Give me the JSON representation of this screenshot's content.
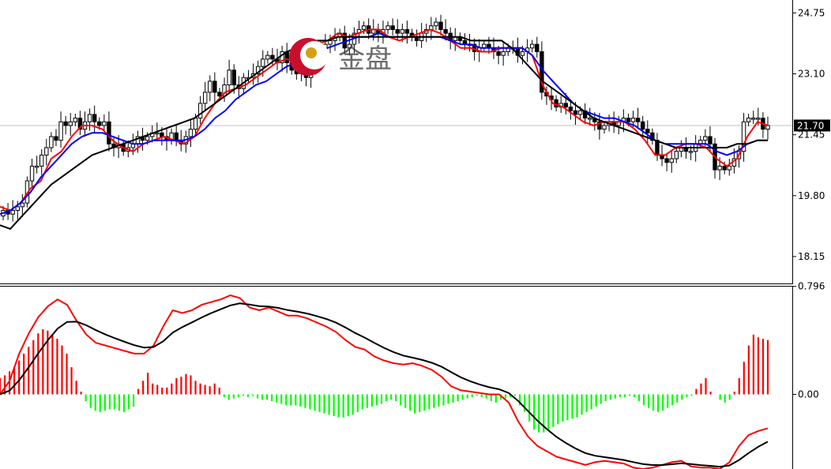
{
  "price_panel": {
    "y_ticks": [
      "24.75",
      "23.10",
      "21.45",
      "19.80",
      "18.15"
    ],
    "current_price": "21.70",
    "current_price_bg": "#000000"
  },
  "macd_panel": {
    "y_ticks": [
      "0.796",
      "0.00"
    ]
  },
  "watermark": {
    "text": "金盘"
  },
  "colors": {
    "ma_fast": "#ff0000",
    "ma_mid": "#0000ff",
    "ma_slow": "#000000",
    "hist_positive": "#ff0000",
    "hist_negative": "#00ff00",
    "macd_line": "#ff0000",
    "signal_line": "#000000",
    "current_price_line": "#c0c0c0"
  },
  "chart_data": [
    {
      "type": "candlestick",
      "title": "",
      "ylim": [
        17.4,
        25.1
      ],
      "y_ticks": [
        24.75,
        23.1,
        21.45,
        19.8,
        18.15
      ],
      "current_price": 21.7,
      "closes": [
        19.4,
        19.3,
        19.4,
        19.5,
        19.6,
        20.2,
        20.6,
        20.6,
        20.9,
        21.1,
        21.4,
        21.3,
        21.8,
        21.7,
        21.8,
        21.9,
        21.6,
        21.8,
        22.0,
        21.8,
        21.7,
        21.8,
        21.2,
        21.1,
        21.2,
        21.0,
        21.1,
        21.2,
        21.4,
        21.3,
        21.4,
        21.5,
        21.5,
        21.4,
        21.3,
        21.5,
        21.3,
        21.2,
        21.4,
        21.6,
        21.9,
        22.3,
        22.6,
        22.9,
        22.6,
        22.5,
        22.8,
        23.2,
        22.8,
        22.7,
        23.0,
        23.0,
        23.1,
        23.3,
        23.5,
        23.6,
        23.5,
        23.4,
        23.7,
        23.4,
        23.2,
        23.1,
        23.3,
        23.0,
        23.2,
        23.7,
        23.8,
        23.9,
        24.0,
        24.1,
        24.2,
        23.8,
        23.9,
        24.2,
        24.3,
        24.4,
        24.2,
        24.3,
        24.2,
        24.3,
        24.4,
        24.3,
        24.2,
        24.3,
        24.2,
        24.1,
        24.0,
        24.2,
        24.3,
        24.4,
        24.5,
        24.3,
        24.2,
        24.0,
        24.1,
        24.0,
        23.9,
        23.9,
        23.7,
        23.8,
        23.9,
        23.8,
        23.7,
        23.6,
        23.7,
        23.8,
        23.8,
        23.6,
        23.7,
        23.8,
        23.9,
        23.7,
        22.6,
        22.5,
        22.4,
        22.2,
        22.3,
        22.2,
        22.1,
        22.0,
        22.1,
        21.9,
        21.9,
        21.8,
        21.6,
        21.7,
        21.8,
        21.7,
        21.8,
        21.9,
        21.8,
        21.9,
        21.8,
        21.6,
        21.5,
        21.3,
        20.9,
        20.8,
        20.7,
        20.8,
        21.0,
        21.1,
        21.0,
        21.0,
        21.2,
        21.3,
        21.4,
        21.2,
        20.5,
        20.6,
        20.5,
        20.6,
        20.8,
        21.0,
        21.8,
        21.9,
        21.9,
        21.9,
        21.6,
        21.7
      ],
      "moving_averages": [
        {
          "values": [
            19.5,
            19.4,
            19.6,
            20.0,
            20.2,
            20.8,
            21.0,
            21.4,
            21.7,
            21.7,
            21.6,
            21.3,
            21.1,
            21.0,
            21.2,
            21.3,
            21.4,
            21.3,
            21.2,
            21.4,
            21.9,
            22.3,
            22.6,
            22.7,
            22.8,
            23.0,
            23.2,
            23.4,
            23.5,
            23.4,
            23.6,
            23.9,
            24.0,
            24.2,
            24.1,
            24.2,
            24.3,
            24.3,
            24.1,
            24.0,
            24.1,
            24.2,
            24.3,
            24.2,
            24.0,
            23.8,
            23.8,
            23.7,
            23.7,
            23.8,
            23.8,
            23.8,
            23.6,
            22.8,
            22.3,
            22.2,
            22.0,
            21.8,
            21.7,
            21.8,
            21.8,
            21.8,
            21.6,
            21.3,
            20.9,
            20.9,
            21.1,
            21.2,
            21.2,
            21.1,
            20.8,
            20.6,
            20.8,
            21.4,
            21.8,
            21.7
          ]
        },
        {
          "values": [
            19.3,
            19.4,
            19.6,
            19.9,
            20.3,
            20.6,
            20.9,
            21.2,
            21.4,
            21.5,
            21.5,
            21.4,
            21.3,
            21.2,
            21.2,
            21.3,
            21.3,
            21.3,
            21.3,
            21.4,
            21.6,
            21.9,
            22.1,
            22.4,
            22.6,
            22.8,
            22.9,
            23.1,
            23.3,
            23.4,
            23.5,
            23.6,
            23.8,
            23.9,
            24.0,
            24.1,
            24.1,
            24.2,
            24.1,
            24.1,
            24.1,
            24.1,
            24.1,
            24.1,
            24.0,
            23.9,
            23.9,
            23.8,
            23.8,
            23.8,
            23.8,
            23.8,
            23.6,
            23.2,
            22.9,
            22.6,
            22.3,
            22.1,
            22.0,
            21.9,
            21.9,
            21.8,
            21.7,
            21.5,
            21.3,
            21.2,
            21.2,
            21.2,
            21.2,
            21.2,
            21.0,
            20.9,
            21.0,
            21.2,
            21.3,
            21.3
          ]
        },
        {
          "values": [
            19.0,
            18.9,
            19.2,
            19.5,
            19.8,
            20.1,
            20.3,
            20.5,
            20.7,
            20.9,
            21.0,
            21.1,
            21.2,
            21.3,
            21.4,
            21.5,
            21.6,
            21.7,
            21.8,
            21.9,
            22.1,
            22.3,
            22.5,
            22.7,
            22.9,
            23.1,
            23.3,
            23.5,
            23.7,
            23.8,
            23.9,
            24.0,
            24.0,
            24.1,
            24.1,
            24.1,
            24.1,
            24.1,
            24.1,
            24.1,
            24.1,
            24.1,
            24.1,
            24.1,
            24.1,
            24.1,
            24.0,
            24.0,
            24.0,
            24.0,
            23.8,
            23.5,
            23.2,
            22.9,
            22.7,
            22.5,
            22.3,
            22.1,
            21.9,
            21.8,
            21.7,
            21.6,
            21.5,
            21.4,
            21.3,
            21.2,
            21.1,
            21.1,
            21.1,
            21.1,
            21.1,
            21.1,
            21.2,
            21.2,
            21.3,
            21.3
          ]
        }
      ]
    },
    {
      "type": "bar",
      "title": "",
      "ylim": [
        -0.55,
        0.8
      ],
      "y_ticks": [
        0.796,
        0.0
      ],
      "histogram": [
        0.12,
        0.14,
        0.17,
        0.2,
        0.25,
        0.3,
        0.35,
        0.4,
        0.45,
        0.48,
        0.47,
        0.44,
        0.41,
        0.36,
        0.3,
        0.2,
        0.1,
        0.02,
        -0.05,
        -0.1,
        -0.12,
        -0.13,
        -0.12,
        -0.11,
        -0.11,
        -0.12,
        -0.13,
        -0.11,
        -0.09,
        0.04,
        0.1,
        0.16,
        0.08,
        0.07,
        0.05,
        0.05,
        0.08,
        0.12,
        0.13,
        0.15,
        0.14,
        0.1,
        0.08,
        0.07,
        0.06,
        0.08,
        0.05,
        -0.02,
        -0.04,
        -0.03,
        -0.02,
        -0.01,
        -0.02,
        -0.01,
        -0.03,
        -0.04,
        -0.04,
        -0.05,
        -0.06,
        -0.07,
        -0.08,
        -0.08,
        -0.08,
        -0.09,
        -0.1,
        -0.11,
        -0.12,
        -0.13,
        -0.14,
        -0.15,
        -0.16,
        -0.17,
        -0.17,
        -0.16,
        -0.15,
        -0.13,
        -0.11,
        -0.1,
        -0.09,
        -0.08,
        -0.07,
        -0.05,
        -0.04,
        -0.05,
        -0.08,
        -0.1,
        -0.12,
        -0.14,
        -0.13,
        -0.12,
        -0.11,
        -0.1,
        -0.09,
        -0.08,
        -0.07,
        -0.06,
        -0.05,
        -0.04,
        -0.03,
        -0.02,
        -0.01,
        -0.02,
        -0.03,
        -0.05,
        -0.06,
        -0.04,
        -0.03,
        -0.02,
        -0.01,
        -0.08,
        -0.13,
        -0.2,
        -0.26,
        -0.28,
        -0.28,
        -0.26,
        -0.24,
        -0.22,
        -0.2,
        -0.19,
        -0.18,
        -0.17,
        -0.15,
        -0.13,
        -0.11,
        -0.09,
        -0.07,
        -0.05,
        -0.04,
        -0.03,
        -0.02,
        -0.02,
        -0.01,
        -0.02,
        -0.05,
        -0.08,
        -0.1,
        -0.12,
        -0.13,
        -0.12,
        -0.1,
        -0.08,
        -0.06,
        -0.04,
        -0.02,
        -0.01,
        0.04,
        0.08,
        0.12,
        0.02,
        0.0,
        -0.04,
        -0.06,
        -0.04,
        0.02,
        0.12,
        0.24,
        0.36,
        0.44,
        0.42,
        0.41,
        0.4
      ],
      "macd_line": [
        0.0,
        0.1,
        0.3,
        0.45,
        0.57,
        0.65,
        0.7,
        0.66,
        0.54,
        0.44,
        0.38,
        0.36,
        0.34,
        0.32,
        0.3,
        0.3,
        0.36,
        0.5,
        0.62,
        0.6,
        0.62,
        0.66,
        0.68,
        0.7,
        0.73,
        0.71,
        0.64,
        0.62,
        0.64,
        0.61,
        0.58,
        0.58,
        0.56,
        0.53,
        0.5,
        0.46,
        0.4,
        0.35,
        0.33,
        0.28,
        0.25,
        0.23,
        0.22,
        0.23,
        0.21,
        0.18,
        0.13,
        0.06,
        0.03,
        0.02,
        0.01,
        0.0,
        0.0,
        -0.06,
        -0.2,
        -0.31,
        -0.38,
        -0.42,
        -0.46,
        -0.48,
        -0.5,
        -0.52,
        -0.5,
        -0.49,
        -0.5,
        -0.51,
        -0.54,
        -0.55,
        -0.54,
        -0.52,
        -0.5,
        -0.49,
        -0.53,
        -0.54,
        -0.54,
        -0.55,
        -0.5,
        -0.38,
        -0.3,
        -0.27,
        -0.25
      ]
    }
  ]
}
